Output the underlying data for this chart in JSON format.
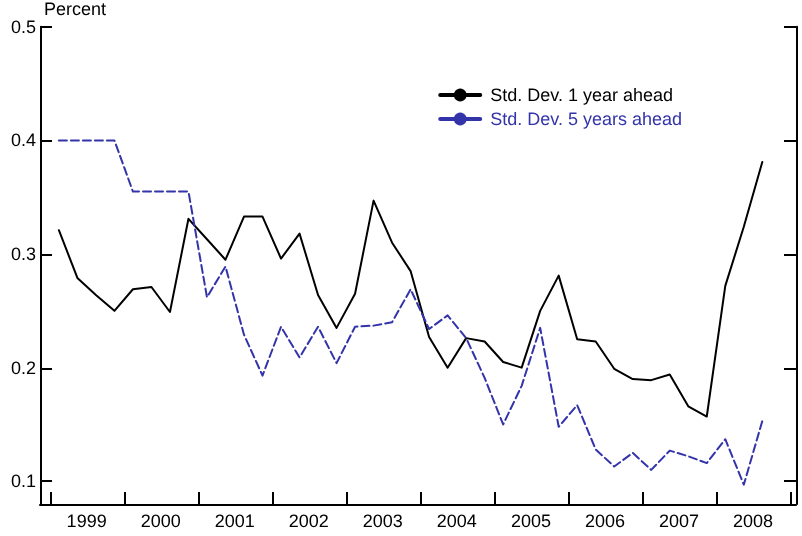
{
  "chart_data": {
    "type": "line",
    "ylabel": "Percent",
    "x": [
      1999.125,
      1999.375,
      1999.625,
      1999.875,
      2000.125,
      2000.375,
      2000.625,
      2000.875,
      2001.125,
      2001.375,
      2001.625,
      2001.875,
      2002.125,
      2002.375,
      2002.625,
      2002.875,
      2003.125,
      2003.375,
      2003.625,
      2003.875,
      2004.125,
      2004.375,
      2004.625,
      2004.875,
      2005.125,
      2005.375,
      2005.625,
      2005.875,
      2006.125,
      2006.375,
      2006.625,
      2006.875,
      2007.125,
      2007.375,
      2007.625,
      2007.875,
      2008.125,
      2008.375,
      2008.625
    ],
    "series": [
      {
        "name": "Std. Dev. 1 year ahead",
        "color": "#000000",
        "line_style": "solid",
        "values": [
          0.321,
          0.279,
          0.264,
          0.25,
          0.269,
          0.271,
          0.249,
          0.331,
          0.313,
          0.295,
          0.333,
          0.333,
          0.296,
          0.318,
          0.264,
          0.235,
          0.265,
          0.347,
          0.31,
          0.285,
          0.227,
          0.2,
          0.226,
          0.223,
          0.205,
          0.2,
          0.25,
          0.281,
          0.225,
          0.223,
          0.199,
          0.19,
          0.189,
          0.194,
          0.166,
          0.157,
          0.272,
          0.324,
          0.381
        ]
      },
      {
        "name": "Std. Dev. 5 years ahead",
        "color": "#3333aa",
        "line_style": "dashed",
        "values": [
          0.4,
          0.4,
          0.4,
          0.4,
          0.355,
          0.355,
          0.355,
          0.355,
          0.262,
          0.289,
          0.229,
          0.193,
          0.236,
          0.209,
          0.236,
          0.204,
          0.236,
          0.237,
          0.24,
          0.269,
          0.234,
          0.246,
          0.226,
          0.191,
          0.15,
          0.184,
          0.235,
          0.148,
          0.167,
          0.128,
          0.113,
          0.125,
          0.11,
          0.127,
          0.122,
          0.116,
          0.137,
          0.097,
          0.153
        ]
      }
    ],
    "xlim": [
      1998.87,
      2009.08
    ],
    "xticks": [
      {
        "value": 1999,
        "label": null
      },
      {
        "value": 1999.5,
        "label": "1999"
      },
      {
        "value": 2000,
        "label": null
      },
      {
        "value": 2000.5,
        "label": "2000"
      },
      {
        "value": 2001,
        "label": null
      },
      {
        "value": 2001.5,
        "label": "2001"
      },
      {
        "value": 2002,
        "label": null
      },
      {
        "value": 2002.5,
        "label": "2002"
      },
      {
        "value": 2003,
        "label": null
      },
      {
        "value": 2003.5,
        "label": "2003"
      },
      {
        "value": 2004,
        "label": null
      },
      {
        "value": 2004.5,
        "label": "2004"
      },
      {
        "value": 2005,
        "label": null
      },
      {
        "value": 2005.5,
        "label": "2005"
      },
      {
        "value": 2006,
        "label": null
      },
      {
        "value": 2006.5,
        "label": "2006"
      },
      {
        "value": 2007,
        "label": null
      },
      {
        "value": 2007.5,
        "label": "2007"
      },
      {
        "value": 2008,
        "label": null
      },
      {
        "value": 2008.5,
        "label": "2008"
      },
      {
        "value": 2009,
        "label": null
      }
    ],
    "ylim": [
      0.08,
      0.5
    ],
    "yticks": [
      0.1,
      0.2,
      0.3,
      0.4,
      0.5
    ],
    "grid": false,
    "legend": "top right",
    "marker": "none"
  }
}
